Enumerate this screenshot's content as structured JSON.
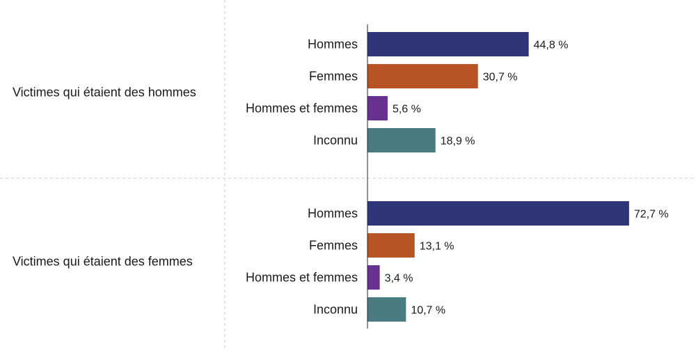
{
  "chart_data": {
    "type": "bar",
    "orientation": "horizontal",
    "title": "",
    "xlabel": "",
    "ylabel": "",
    "xlim": [
      0,
      80
    ],
    "grid": false,
    "legend": "none",
    "unit": "%",
    "categories": [
      "Hommes",
      "Femmes",
      "Hommes et femmes",
      "Inconnu"
    ],
    "category_colors": [
      "#2e3579",
      "#b85326",
      "#66318f",
      "#4a7b80"
    ],
    "groups": [
      {
        "label": "Victimes qui étaient des hommes",
        "values": [
          44.8,
          30.7,
          5.6,
          18.9
        ],
        "value_labels": [
          "44,8 %",
          "30,7 %",
          "5,6 %",
          "18,9 %"
        ]
      },
      {
        "label": "Victimes qui étaient des femmes",
        "values": [
          72.7,
          13.1,
          3.4,
          10.7
        ],
        "value_labels": [
          "72,7 %",
          "13,1 %",
          "3,4 %",
          "10,7 %"
        ]
      }
    ]
  }
}
